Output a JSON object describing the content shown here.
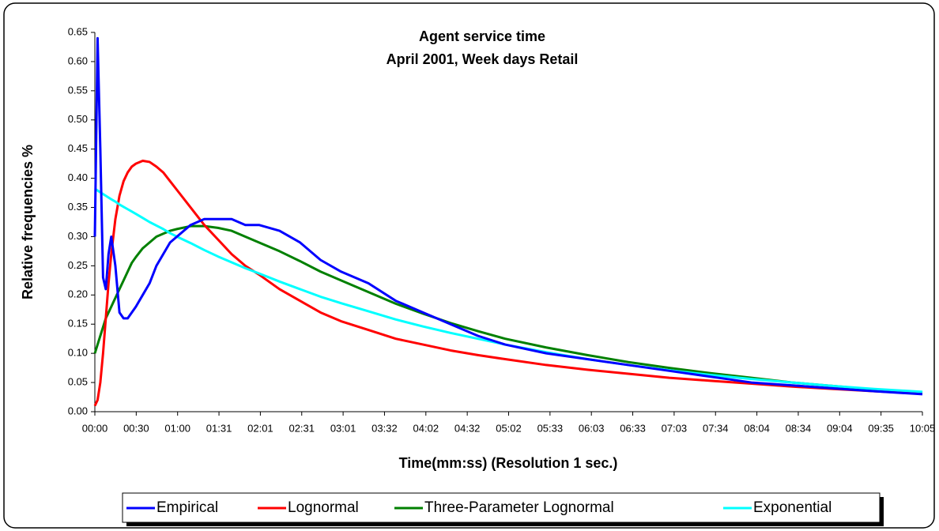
{
  "chart_data": {
    "type": "line",
    "title": "Agent service time",
    "subtitle": "April 2001, Week days Retail",
    "x_label": "Time(mm:ss) (Resolution 1 sec.)",
    "y_label": "Relative frequencies %",
    "x": [
      0,
      2,
      4,
      6,
      8,
      10,
      12,
      15,
      18,
      21,
      24,
      27,
      30,
      35,
      40,
      45,
      50,
      55,
      60,
      70,
      80,
      90,
      100,
      110,
      120,
      135,
      150,
      165,
      180,
      200,
      220,
      240,
      260,
      280,
      300,
      330,
      360,
      390,
      420,
      450,
      480,
      510,
      540,
      570,
      605
    ],
    "series": [
      {
        "name": "Empirical",
        "color": "#0000ff",
        "values": [
          0.3,
          0.64,
          0.45,
          0.23,
          0.21,
          0.27,
          0.3,
          0.25,
          0.17,
          0.16,
          0.16,
          0.17,
          0.18,
          0.2,
          0.22,
          0.25,
          0.27,
          0.29,
          0.3,
          0.32,
          0.33,
          0.33,
          0.33,
          0.32,
          0.32,
          0.31,
          0.29,
          0.26,
          0.24,
          0.22,
          0.19,
          0.17,
          0.15,
          0.13,
          0.115,
          0.1,
          0.09,
          0.08,
          0.07,
          0.06,
          0.05,
          0.045,
          0.04,
          0.035,
          0.03
        ]
      },
      {
        "name": "Lognormal",
        "color": "#ff0000",
        "values": [
          0.01,
          0.02,
          0.05,
          0.1,
          0.16,
          0.22,
          0.27,
          0.33,
          0.37,
          0.395,
          0.41,
          0.42,
          0.425,
          0.43,
          0.428,
          0.42,
          0.41,
          0.395,
          0.38,
          0.35,
          0.32,
          0.295,
          0.27,
          0.25,
          0.235,
          0.21,
          0.19,
          0.17,
          0.155,
          0.14,
          0.125,
          0.115,
          0.105,
          0.097,
          0.09,
          0.08,
          0.072,
          0.065,
          0.058,
          0.053,
          0.048,
          0.043,
          0.039,
          0.035,
          0.031
        ]
      },
      {
        "name": "Three-Parameter Lognormal",
        "color": "#008000",
        "values": [
          0.1,
          0.115,
          0.13,
          0.145,
          0.16,
          0.17,
          0.18,
          0.195,
          0.21,
          0.225,
          0.24,
          0.255,
          0.265,
          0.28,
          0.29,
          0.3,
          0.305,
          0.31,
          0.313,
          0.318,
          0.318,
          0.315,
          0.31,
          0.3,
          0.29,
          0.275,
          0.258,
          0.24,
          0.225,
          0.205,
          0.185,
          0.168,
          0.152,
          0.138,
          0.125,
          0.11,
          0.097,
          0.085,
          0.075,
          0.066,
          0.058,
          0.05,
          0.044,
          0.038,
          0.033
        ]
      },
      {
        "name": "Exponential",
        "color": "#00ffff",
        "values": [
          0.382,
          0.379,
          0.376,
          0.373,
          0.37,
          0.367,
          0.364,
          0.36,
          0.355,
          0.351,
          0.347,
          0.343,
          0.339,
          0.332,
          0.325,
          0.319,
          0.313,
          0.306,
          0.3,
          0.289,
          0.277,
          0.266,
          0.256,
          0.246,
          0.237,
          0.223,
          0.21,
          0.197,
          0.186,
          0.172,
          0.158,
          0.146,
          0.135,
          0.125,
          0.115,
          0.102,
          0.09,
          0.08,
          0.071,
          0.063,
          0.056,
          0.05,
          0.044,
          0.039,
          0.034
        ]
      }
    ],
    "xlim": [
      0,
      605
    ],
    "xticks": [
      {
        "value": 0,
        "label": "00:00"
      },
      {
        "value": 30.25,
        "label": "00:30"
      },
      {
        "value": 60.5,
        "label": "01:00"
      },
      {
        "value": 90.75,
        "label": "01:31"
      },
      {
        "value": 121,
        "label": "02:01"
      },
      {
        "value": 151.25,
        "label": "02:31"
      },
      {
        "value": 181.5,
        "label": "03:01"
      },
      {
        "value": 211.75,
        "label": "03:32"
      },
      {
        "value": 242,
        "label": "04:02"
      },
      {
        "value": 272.25,
        "label": "04:32"
      },
      {
        "value": 302.5,
        "label": "05:02"
      },
      {
        "value": 332.75,
        "label": "05:33"
      },
      {
        "value": 363,
        "label": "06:03"
      },
      {
        "value": 393.25,
        "label": "06:33"
      },
      {
        "value": 423.5,
        "label": "07:03"
      },
      {
        "value": 453.75,
        "label": "07:34"
      },
      {
        "value": 484,
        "label": "08:04"
      },
      {
        "value": 514.25,
        "label": "08:34"
      },
      {
        "value": 544.5,
        "label": "09:04"
      },
      {
        "value": 574.75,
        "label": "09:35"
      },
      {
        "value": 605,
        "label": "10:05"
      }
    ],
    "ylim": [
      0,
      0.65
    ],
    "yticks": [
      {
        "value": 0,
        "label": "0.00"
      },
      {
        "value": 0.05,
        "label": "0.05"
      },
      {
        "value": 0.1,
        "label": "0.10"
      },
      {
        "value": 0.15,
        "label": "0.15"
      },
      {
        "value": 0.2,
        "label": "0.20"
      },
      {
        "value": 0.25,
        "label": "0.25"
      },
      {
        "value": 0.3,
        "label": "0.30"
      },
      {
        "value": 0.35,
        "label": "0.35"
      },
      {
        "value": 0.4,
        "label": "0.40"
      },
      {
        "value": 0.45,
        "label": "0.45"
      },
      {
        "value": 0.5,
        "label": "0.50"
      },
      {
        "value": 0.55,
        "label": "0.55"
      },
      {
        "value": 0.6,
        "label": "0.60"
      },
      {
        "value": 0.65,
        "label": "0.65"
      }
    ],
    "legend": "bottom"
  }
}
